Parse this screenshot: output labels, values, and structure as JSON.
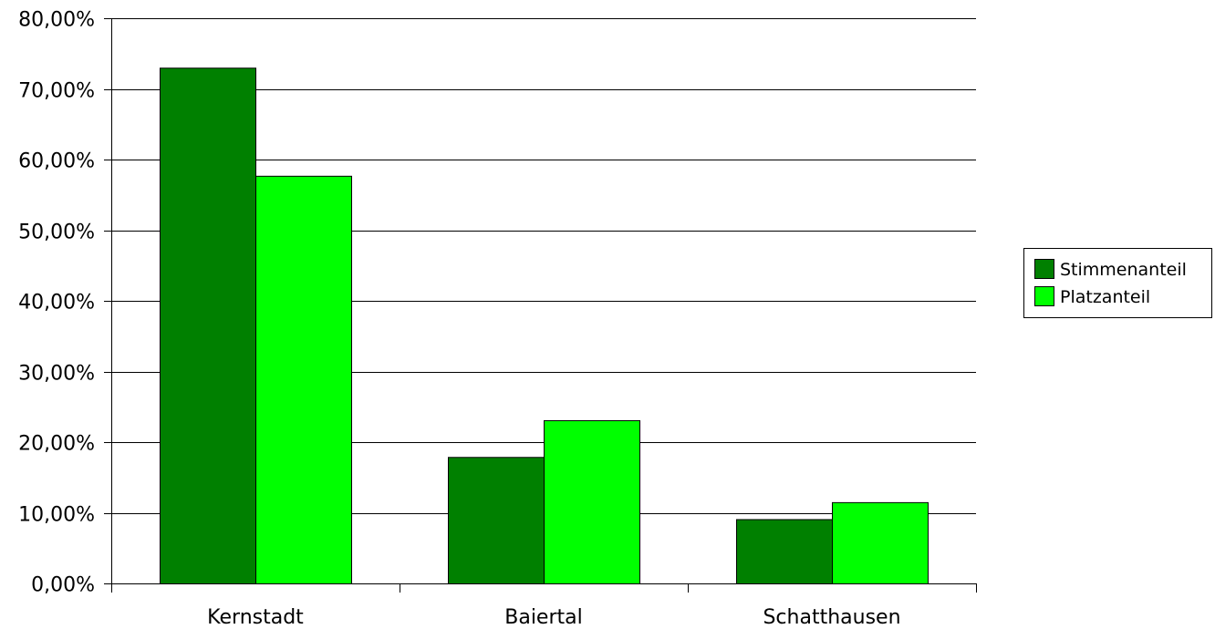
{
  "chart_data": {
    "type": "bar",
    "title": "",
    "xlabel": "",
    "ylabel": "",
    "categories": [
      "Kernstadt",
      "Baiertal",
      "Schatthausen"
    ],
    "series": [
      {
        "name": "Stimmenanteil",
        "color": "#008000",
        "values": [
          73.0,
          17.9,
          9.1
        ]
      },
      {
        "name": "Platzanteil",
        "color": "#00ff00",
        "values": [
          57.7,
          23.1,
          11.5
        ]
      }
    ],
    "ylim": [
      0,
      80
    ],
    "yticks": [
      0,
      10,
      20,
      30,
      40,
      50,
      60,
      70,
      80
    ],
    "ytick_labels": [
      "0,00%",
      "10,00%",
      "20,00%",
      "30,00%",
      "40,00%",
      "50,00%",
      "60,00%",
      "70,00%",
      "80,00%"
    ],
    "grid": true,
    "legend_position": "right"
  }
}
